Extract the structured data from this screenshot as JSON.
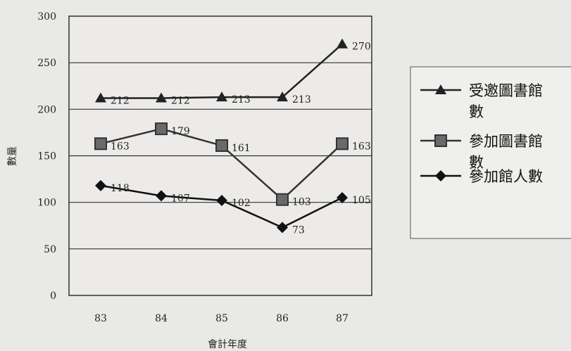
{
  "chart_data": {
    "type": "line",
    "title": "",
    "xlabel": "會計年度",
    "ylabel": "數量",
    "categories": [
      "83",
      "84",
      "85",
      "86",
      "87"
    ],
    "ylim": [
      0,
      300
    ],
    "yticks": [
      "0",
      "50",
      "100",
      "150",
      "200",
      "250",
      "300"
    ],
    "grid": true,
    "legend_position": "right",
    "series": [
      {
        "name_lines": [
          "受邀圖書館",
          "數"
        ],
        "marker": "triangle",
        "color": "#222222",
        "values": [
          212,
          212,
          213,
          213,
          270
        ],
        "labels": [
          "212",
          "212",
          "213",
          "213",
          "270"
        ]
      },
      {
        "name_lines": [
          "參加圖書館",
          "數"
        ],
        "marker": "square",
        "color": "#333333",
        "values": [
          163,
          179,
          161,
          103,
          163
        ],
        "labels": [
          "163",
          "179",
          "161",
          "103",
          "163"
        ]
      },
      {
        "name_lines": [
          "參加館人數"
        ],
        "marker": "diamond",
        "color": "#111111",
        "values": [
          118,
          107,
          102,
          73,
          105
        ],
        "labels": [
          "118",
          "107",
          "102",
          "73",
          "105"
        ]
      }
    ]
  }
}
